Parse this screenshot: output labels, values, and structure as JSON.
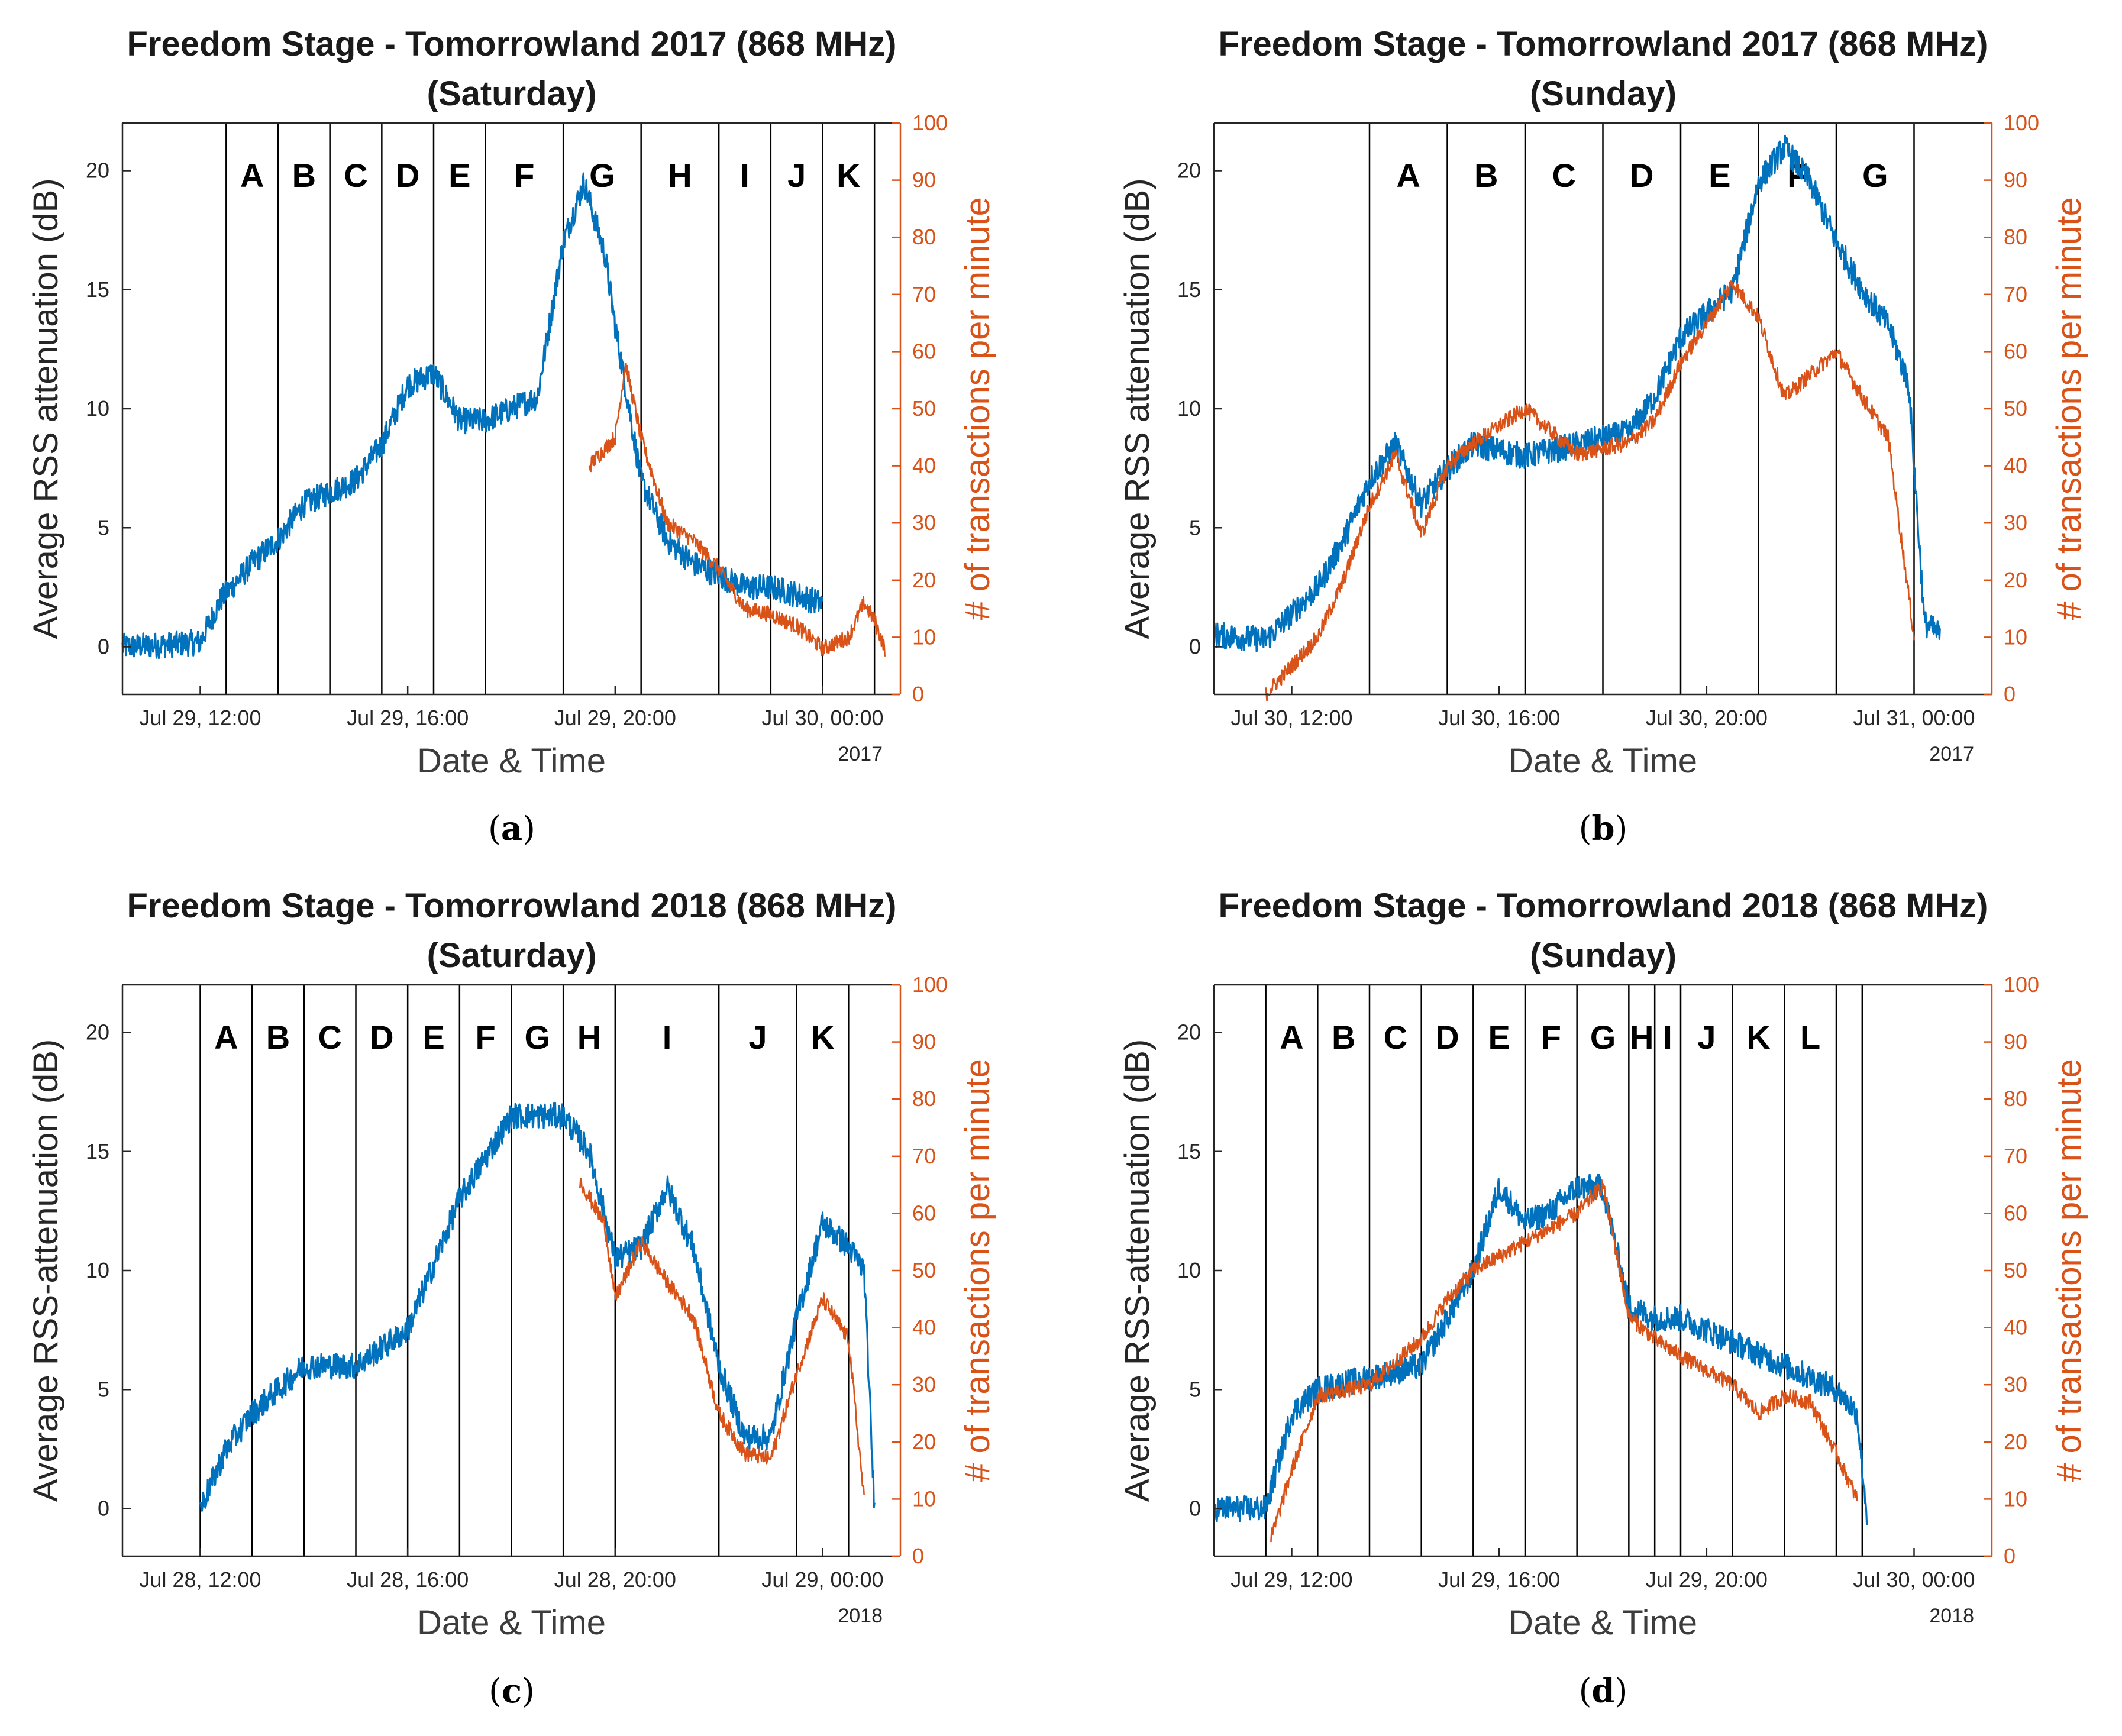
{
  "colors": {
    "rss": "#0072BD",
    "transactions": "#D95319",
    "axis": "#262626"
  },
  "chart_data": [
    {
      "type": "line",
      "panel": "a",
      "caption_letter": "a",
      "title_line1": "Freedom Stage - Tomorrowland 2017 (868 MHz)",
      "title_line2": "(Saturday)",
      "xlabel": "Date & Time",
      "ylabel": "Average RSS attenuation (dB)",
      "y2label": "# of transactions per minute",
      "year_label": "2017",
      "x_range_hours": [
        10.5,
        25.5
      ],
      "ylim": [
        -2,
        22
      ],
      "y2lim": [
        0,
        100
      ],
      "y_ticks": [
        0,
        5,
        10,
        15,
        20
      ],
      "y2_ticks": [
        0,
        10,
        20,
        30,
        40,
        50,
        60,
        70,
        80,
        90,
        100
      ],
      "x_ticks": [
        {
          "h": 12,
          "label": "Jul 29, 12:00"
        },
        {
          "h": 16,
          "label": "Jul 29, 16:00"
        },
        {
          "h": 20,
          "label": "Jul 29, 20:00"
        },
        {
          "h": 24,
          "label": "Jul 30, 00:00"
        }
      ],
      "segment_boundaries_hours": [
        12.5,
        13.5,
        14.5,
        15.5,
        16.5,
        17.5,
        19.0,
        20.5,
        22.0,
        23.0,
        24.0,
        25.0
      ],
      "segments": [
        "A",
        "B",
        "C",
        "D",
        "E",
        "F",
        "G",
        "H",
        "I",
        "J",
        "K"
      ],
      "series": [
        {
          "name": "Average RSS attenuation (dB)",
          "axis": "left",
          "x": [
            10.5,
            11.5,
            12.0,
            12.4,
            13.0,
            13.5,
            14.0,
            14.5,
            15.0,
            15.5,
            16.0,
            16.5,
            17.0,
            17.5,
            18.0,
            18.5,
            19.0,
            19.4,
            19.8,
            20.0,
            20.5,
            21.0,
            21.5,
            22.0,
            22.5,
            23.0,
            23.5,
            24.0
          ],
          "y": [
            0,
            0.1,
            0.2,
            2.0,
            3.5,
            4.5,
            6.0,
            6.5,
            7.0,
            8.5,
            11.0,
            11.5,
            9.5,
            9.5,
            10.0,
            10.5,
            17.0,
            19.5,
            16.5,
            13.5,
            7.0,
            4.5,
            3.5,
            3.0,
            2.5,
            2.5,
            2.2,
            1.8
          ]
        },
        {
          "name": "# of transactions per minute",
          "axis": "right",
          "x": [
            19.5,
            20.0,
            20.2,
            20.5,
            21.0,
            21.5,
            22.0,
            22.5,
            23.0,
            23.5,
            24.0,
            24.5,
            24.8,
            25.0,
            25.2
          ],
          "y": [
            40,
            45,
            58,
            45,
            30,
            27,
            22,
            15,
            14,
            12,
            8,
            10,
            16,
            13,
            8
          ]
        }
      ]
    },
    {
      "type": "line",
      "panel": "b",
      "caption_letter": "b",
      "title_line1": "Freedom Stage - Tomorrowland 2017 (868 MHz)",
      "title_line2": "(Sunday)",
      "xlabel": "Date & Time",
      "ylabel": "Average RSS attenuation (dB)",
      "y2label": "# of transactions per minute",
      "year_label": "2017",
      "x_range_hours": [
        10.5,
        25.5
      ],
      "ylim": [
        -2,
        22
      ],
      "y2lim": [
        0,
        100
      ],
      "y_ticks": [
        0,
        5,
        10,
        15,
        20
      ],
      "y2_ticks": [
        0,
        10,
        20,
        30,
        40,
        50,
        60,
        70,
        80,
        90,
        100
      ],
      "x_ticks": [
        {
          "h": 12,
          "label": "Jul 30, 12:00"
        },
        {
          "h": 16,
          "label": "Jul 30, 16:00"
        },
        {
          "h": 20,
          "label": "Jul 30, 20:00"
        },
        {
          "h": 24,
          "label": "Jul 31, 00:00"
        }
      ],
      "segment_boundaries_hours": [
        13.5,
        15.0,
        16.5,
        18.0,
        19.5,
        21.0,
        22.5,
        24.0
      ],
      "segments": [
        "A",
        "B",
        "C",
        "D",
        "E",
        "F",
        "G"
      ],
      "series": [
        {
          "name": "Average RSS attenuation (dB)",
          "axis": "left",
          "x": [
            10.5,
            11.5,
            12.5,
            13.0,
            13.5,
            14.0,
            14.5,
            15.0,
            15.5,
            16.5,
            17.5,
            18.5,
            19.0,
            19.5,
            20.5,
            21.0,
            21.5,
            22.0,
            22.5,
            23.0,
            23.5,
            23.9,
            24.2,
            24.5
          ],
          "y": [
            0.5,
            0.3,
            2.5,
            4.5,
            7.0,
            8.5,
            6.0,
            7.5,
            8.5,
            8.0,
            8.5,
            9.0,
            10.5,
            13.0,
            15.0,
            19.5,
            21.0,
            19.5,
            17.0,
            15.0,
            13.5,
            11.0,
            1.0,
            0.5
          ]
        },
        {
          "name": "# of transactions per minute",
          "axis": "right",
          "x": [
            11.5,
            12.5,
            13.0,
            13.5,
            14.0,
            14.5,
            15.0,
            15.5,
            16.5,
            17.5,
            18.5,
            19.0,
            19.5,
            20.5,
            21.0,
            21.5,
            22.0,
            22.5,
            23.0,
            23.5,
            24.0
          ],
          "y": [
            0,
            10,
            20,
            33,
            42,
            28,
            40,
            44,
            50,
            42,
            44,
            48,
            58,
            72,
            66,
            52,
            56,
            60,
            52,
            45,
            10
          ]
        }
      ]
    },
    {
      "type": "line",
      "panel": "c",
      "caption_letter": "c",
      "title_line1": "Freedom Stage - Tomorrowland 2018 (868 MHz)",
      "title_line2": "(Saturday)",
      "xlabel": "Date & Time",
      "ylabel": "Average RSS-attenuation (dB)",
      "y2label": "# of transactions per minute",
      "year_label": "2018",
      "x_range_hours": [
        10.5,
        25.5
      ],
      "ylim": [
        -2,
        22
      ],
      "y2lim": [
        0,
        100
      ],
      "y_ticks": [
        0,
        5,
        10,
        15,
        20
      ],
      "y2_ticks": [
        0,
        10,
        20,
        30,
        40,
        50,
        60,
        70,
        80,
        90,
        100
      ],
      "x_ticks": [
        {
          "h": 12,
          "label": "Jul 28, 12:00"
        },
        {
          "h": 16,
          "label": "Jul 28, 16:00"
        },
        {
          "h": 20,
          "label": "Jul 28, 20:00"
        },
        {
          "h": 24,
          "label": "Jul 29, 00:00"
        }
      ],
      "segment_boundaries_hours": [
        12.0,
        13.0,
        14.0,
        15.0,
        16.0,
        17.0,
        18.0,
        19.0,
        20.0,
        22.0,
        23.5,
        24.5
      ],
      "segments": [
        "A",
        "B",
        "C",
        "D",
        "E",
        "F",
        "G",
        "H",
        "I",
        "J",
        "K"
      ],
      "series": [
        {
          "name": "Average RSS-attenuation (dB)",
          "axis": "left",
          "x": [
            12.0,
            12.5,
            13.0,
            14.0,
            15.0,
            16.0,
            17.0,
            18.0,
            18.5,
            19.0,
            19.5,
            20.0,
            20.5,
            21.0,
            21.5,
            22.0,
            22.5,
            23.0,
            23.5,
            24.0,
            24.5,
            24.8,
            25.0
          ],
          "y": [
            0,
            2.5,
            4.0,
            6.0,
            6.0,
            7.5,
            13.0,
            16.5,
            16.5,
            16.5,
            15.0,
            10.5,
            11.0,
            13.5,
            11.0,
            6.0,
            3.0,
            3.0,
            8.0,
            12.0,
            11.0,
            10.0,
            0
          ]
        },
        {
          "name": "# of transactions per minute",
          "axis": "right",
          "x": [
            19.3,
            19.8,
            20.0,
            20.5,
            21.0,
            21.5,
            22.0,
            22.5,
            23.0,
            23.5,
            24.0,
            24.5,
            24.8
          ],
          "y": [
            66,
            58,
            45,
            55,
            48,
            42,
            25,
            18,
            17,
            32,
            45,
            38,
            10
          ]
        }
      ]
    },
    {
      "type": "line",
      "panel": "d",
      "caption_letter": "d",
      "title_line1": "Freedom Stage - Tomorrowland 2018 (868 MHz)",
      "title_line2": "(Sunday)",
      "xlabel": "Date & Time",
      "ylabel": "Average RSS-attenuation (dB)",
      "y2label": "# of transactions per minute",
      "year_label": "2018",
      "x_range_hours": [
        10.5,
        25.5
      ],
      "ylim": [
        -2,
        22
      ],
      "y2lim": [
        0,
        100
      ],
      "y_ticks": [
        0,
        5,
        10,
        15,
        20
      ],
      "y2_ticks": [
        0,
        10,
        20,
        30,
        40,
        50,
        60,
        70,
        80,
        90,
        100
      ],
      "x_ticks": [
        {
          "h": 12,
          "label": "Jul 29, 12:00"
        },
        {
          "h": 16,
          "label": "Jul 29, 16:00"
        },
        {
          "h": 20,
          "label": "Jul 29, 20:00"
        },
        {
          "h": 24,
          "label": "Jul 30, 00:00"
        }
      ],
      "segment_boundaries_hours": [
        11.5,
        12.5,
        13.5,
        14.5,
        15.5,
        16.5,
        17.5,
        18.5,
        19.0,
        19.5,
        20.5,
        21.5,
        22.5,
        23.0
      ],
      "segments": [
        "A",
        "B",
        "C",
        "D",
        "E",
        "F",
        "G",
        "H",
        "I",
        "J",
        "K",
        "L"
      ],
      "series": [
        {
          "name": "Average RSS-attenuation (dB)",
          "axis": "left",
          "x": [
            10.5,
            11.5,
            12.0,
            12.5,
            13.5,
            14.5,
            15.5,
            16.0,
            16.5,
            17.0,
            17.5,
            18.0,
            18.5,
            19.0,
            19.5,
            20.5,
            21.5,
            22.5,
            22.9,
            23.1
          ],
          "y": [
            0,
            0,
            4.0,
            5.0,
            5.5,
            6.0,
            10.0,
            13.5,
            12.0,
            12.5,
            13.5,
            13.5,
            8.5,
            8.0,
            8.0,
            7.0,
            6.0,
            5.0,
            4.0,
            -0.5
          ]
        },
        {
          "name": "# of transactions per minute",
          "axis": "right",
          "x": [
            11.6,
            12.0,
            12.5,
            13.5,
            14.5,
            15.0,
            15.5,
            16.5,
            17.5,
            18.0,
            18.5,
            19.0,
            19.5,
            20.5,
            21.0,
            21.5,
            22.0,
            22.5,
            22.9
          ],
          "y": [
            3,
            15,
            28,
            30,
            38,
            45,
            50,
            55,
            60,
            65,
            42,
            38,
            35,
            30,
            25,
            28,
            27,
            18,
            10
          ]
        }
      ]
    }
  ]
}
